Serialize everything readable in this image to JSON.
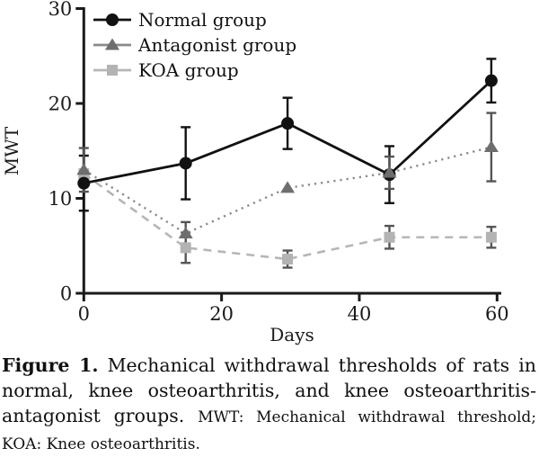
{
  "figure": {
    "caption_label": "Figure 1.",
    "caption_text": "Mechanical withdrawal thresholds of rats in normal, knee osteoarthritis, and knee osteoarthritis-antagonist groups.",
    "caption_note": "MWT: Mechanical withdrawal threshold; KOA: Knee osteoarthritis."
  },
  "chart_data": {
    "type": "line",
    "title": "",
    "xlabel": "Days",
    "ylabel": "MWT",
    "x": [
      0,
      14,
      28,
      42,
      56
    ],
    "xlim": [
      0,
      60
    ],
    "ylim": [
      0,
      30
    ],
    "x_ticks": [
      0,
      20,
      40,
      60
    ],
    "y_ticks": [
      0,
      10,
      20,
      30
    ],
    "grid": false,
    "legend_position": "top-left",
    "axis_color": "#1a1a1a",
    "series": [
      {
        "name": "Normal group",
        "marker": "circle",
        "line_style": "solid",
        "color": "#111111",
        "line_color": "#111111",
        "err_color": "#111111",
        "values": [
          11.6,
          13.7,
          17.9,
          12.5,
          22.4
        ],
        "errors": [
          2.9,
          3.8,
          2.7,
          3.0,
          2.3
        ]
      },
      {
        "name": "Antagonist group",
        "marker": "triangle",
        "line_style": "dotted",
        "color": "#6e6e6e",
        "line_color": "#8a8a8a",
        "err_color": "#555555",
        "values": [
          13.0,
          6.3,
          11.1,
          12.7,
          15.4
        ],
        "errors": [
          2.3,
          1.2,
          0,
          1.7,
          3.6
        ]
      },
      {
        "name": "KOA group",
        "marker": "square",
        "line_style": "dashed",
        "color": "#b3b3b3",
        "line_color": "#b6b6b6",
        "err_color": "#555555",
        "values": [
          12.6,
          4.8,
          3.6,
          5.9,
          5.9
        ],
        "errors": [
          0,
          1.6,
          0.9,
          1.2,
          1.1
        ]
      }
    ]
  }
}
